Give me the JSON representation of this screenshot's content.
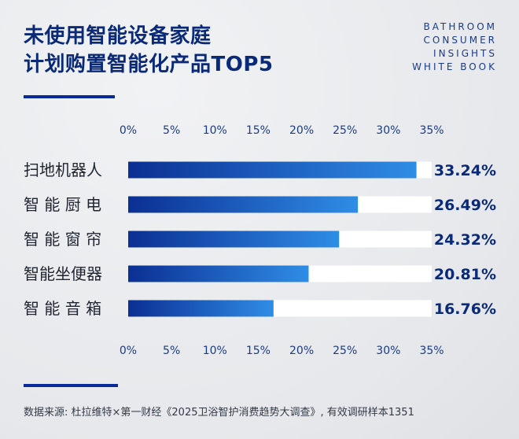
{
  "title": {
    "line1": "未使用智能设备家庭",
    "line2": "计划购置智能化产品TOP5"
  },
  "brand": {
    "line1": "BATHROOM",
    "line2": "CONSUMER",
    "line3": "INSIGHTS",
    "line4": "WHITE BOOK"
  },
  "colors": {
    "title": "#0a2a78",
    "bar_dark": "#0b2f93",
    "bar_light": "#2f8de6",
    "track": "#ffffff",
    "accent_rule": "#0a2a9a"
  },
  "chart_data": {
    "type": "bar",
    "orientation": "horizontal",
    "categories": [
      "扫地机器人",
      "智 能 厨 电",
      "智 能 窗 帘",
      "智能坐便器",
      "智 能 音 箱"
    ],
    "values": [
      33.24,
      26.49,
      24.32,
      20.81,
      16.76
    ],
    "value_labels": [
      "33.24%",
      "26.49%",
      "24.32%",
      "20.81%",
      "16.76%"
    ],
    "xlim": [
      0,
      35
    ],
    "ticks": [
      0,
      5,
      10,
      15,
      20,
      25,
      30,
      35
    ],
    "tick_labels": [
      "0%",
      "5%",
      "10%",
      "15%",
      "20%",
      "25%",
      "30%",
      "35%"
    ],
    "axis_position": "top and bottom",
    "grid": false
  },
  "source": "数据来源: 杜拉维特×第一财经《2025卫浴智护消费趋势大调查》, 有效调研样本1351"
}
